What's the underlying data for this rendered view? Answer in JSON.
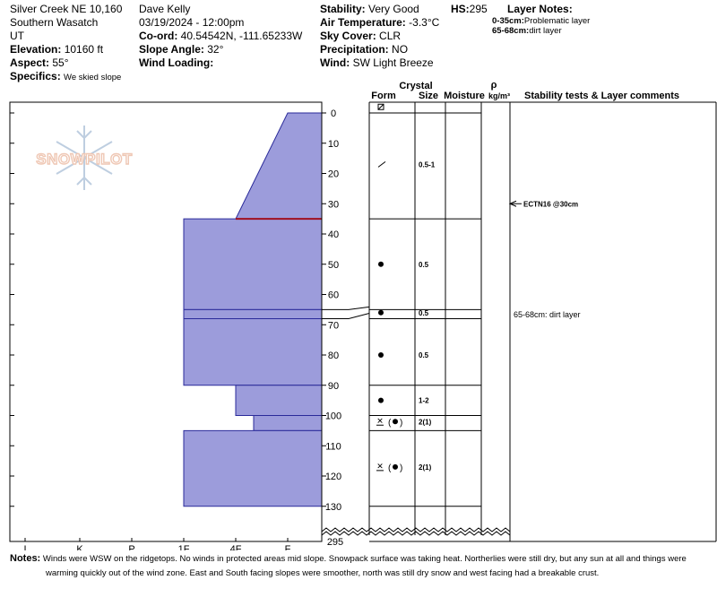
{
  "header": {
    "location": "Silver Creek NE 10,160",
    "range": "Southern Wasatch",
    "state": "UT",
    "elevation_label": "Elevation:",
    "elevation": "10160 ft",
    "aspect_label": "Aspect:",
    "aspect": "55°",
    "specifics_label": "Specifics:",
    "specifics": "We skied slope",
    "observer": "Dave Kelly",
    "datetime": "03/19/2024 - 12:00pm",
    "coord_label": "Co-ord:",
    "coord": "40.54542N, -111.65233W",
    "slope_label": "Slope Angle:",
    "slope": "32°",
    "wind_loading_label": "Wind Loading:",
    "wind_loading": "",
    "stability_label": "Stability:",
    "stability": "Very Good",
    "hs_label": "HS:",
    "hs": "295",
    "air_temp_label": "Air Temperature:",
    "air_temp": "-3.3°C",
    "sky_label": "Sky Cover:",
    "sky": "CLR",
    "precip_label": "Precipitation:",
    "precip": "NO",
    "wind_label": "Wind:",
    "wind": "SW Light Breeze",
    "layer_notes_label": "Layer Notes:",
    "layer_notes": [
      {
        "range": "0-35cm:",
        "text": "Problematic layer"
      },
      {
        "range": "65-68cm:",
        "text": "dirt layer"
      }
    ]
  },
  "watermark": "SNOWPILOT",
  "notes_label": "Notes:",
  "notes_line1": "Winds were WSW on the ridgetops. No winds in protected areas mid slope. Snowpack surface was taking heat. Northerlies were still dry, but any sun at all and things were",
  "notes_line2": "warming quickly out of the wind zone.  East and South facing slopes were smoother, north was still dry snow and west facing had a breakable crust.",
  "chart_data": {
    "type": "snow profile",
    "columns": {
      "crystal": "Crystal",
      "form": "Form",
      "size": "Size",
      "moisture": "Moisture",
      "rho": "ρ",
      "density": "kg/m³",
      "comments": "Stability tests & Layer comments"
    },
    "depth_ticks": [
      0,
      10,
      20,
      30,
      40,
      50,
      60,
      70,
      80,
      90,
      100,
      110,
      120,
      130
    ],
    "depth_bottom_label": "295",
    "hardness_scale": [
      "I",
      "K",
      "P",
      "1F",
      "4F",
      "F"
    ],
    "hardness_profile": [
      {
        "top": 0,
        "bottom": 35,
        "hardness_from": "F",
        "hardness_to": "4F"
      },
      {
        "top": 35,
        "bottom": 65,
        "hardness": "1F"
      },
      {
        "top": 65,
        "bottom": 68,
        "hardness": "1F"
      },
      {
        "top": 68,
        "bottom": 90,
        "hardness": "1F"
      },
      {
        "top": 90,
        "bottom": 100,
        "hardness": "4F"
      },
      {
        "top": 100,
        "bottom": 105,
        "hardness": "4F-F"
      },
      {
        "top": 105,
        "bottom": 130,
        "hardness": "1F"
      }
    ],
    "layer_boundaries": [
      35,
      65,
      68,
      90,
      100,
      105,
      130
    ],
    "critical_layer": 35,
    "crystal_rows": [
      {
        "depth": -2,
        "form": "surface-hoar",
        "size": ""
      },
      {
        "depth": 17,
        "form": "slash",
        "size": "0.5-1"
      },
      {
        "depth": 50,
        "form": "round",
        "size": "0.5"
      },
      {
        "depth": 66,
        "form": "round",
        "size": "0.5"
      },
      {
        "depth": 80,
        "form": "round",
        "size": "0.5"
      },
      {
        "depth": 95,
        "form": "round",
        "size": "1-2"
      },
      {
        "depth": 102,
        "form": "crust-round",
        "size": "2(1)"
      },
      {
        "depth": 117,
        "form": "crust-round",
        "size": "2(1)"
      }
    ],
    "tests": [
      {
        "depth": 30,
        "text": "ECTN16 @30cm"
      }
    ],
    "layer_comments": [
      {
        "depth": 66,
        "text": "65-68cm: dirt layer"
      }
    ]
  }
}
